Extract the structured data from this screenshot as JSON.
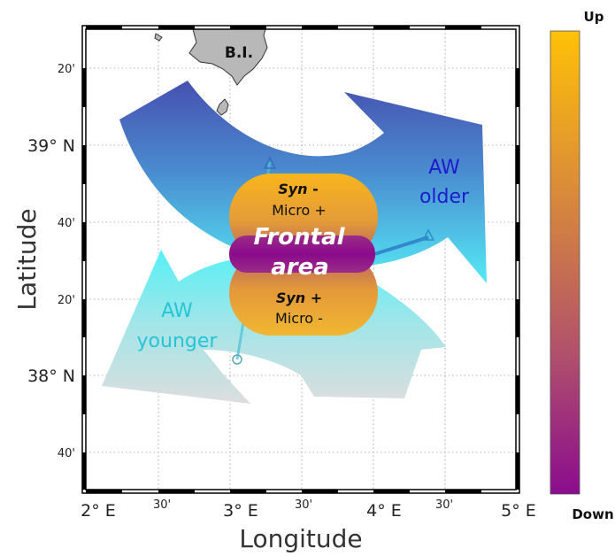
{
  "map": {
    "x_axis_title": "Longitude",
    "y_axis_title": "Latitude",
    "x_major_ticks": [
      "2° E",
      "3° E",
      "4° E",
      "5° E"
    ],
    "x_minor_ticks": [
      "30'",
      "30'",
      "30'"
    ],
    "y_major_ticks": [
      "39° N",
      "38° N"
    ],
    "y_minor_ticks": [
      "20'",
      "40'",
      "20'",
      "40'"
    ],
    "land_label": "B.I.",
    "aw_older_line1": "AW",
    "aw_older_line2": "older",
    "aw_younger_line1": "AW",
    "aw_younger_line2": "younger",
    "frontal_line1": "Frontal",
    "frontal_line2": "area",
    "north_lobe_italic": "Syn",
    "north_lobe_sign": " -",
    "north_lobe_line2": "Micro +",
    "south_lobe_italic": "Syn",
    "south_lobe_sign": " +",
    "south_lobe_line2": "Micro -"
  },
  "colorbar": {
    "top_label": "Up",
    "bottom_label": "Down",
    "colors": [
      "#ffc107",
      "#d98a3a",
      "#b2506a",
      "#8c0f8e"
    ]
  },
  "colors": {
    "aw_older_top": "#4652b0",
    "aw_older_bottom": "#55e9f4",
    "aw_younger_top": "#5ff0f5",
    "aw_younger_bottom": "#e0e0e0",
    "frontal_purple": "#8b0c8b",
    "lobe_orange": "#f7ab1c"
  }
}
